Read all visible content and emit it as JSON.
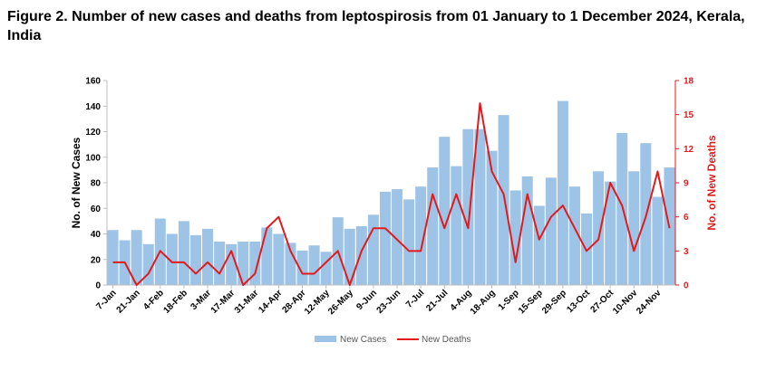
{
  "chart_data": {
    "type": "bar+line",
    "title": "Figure 2. Number of new cases and deaths from leptospirosis from 01 January to 1 December 2024, Kerala, India",
    "ylabel": "No. of New Cases",
    "y2label": "No. of New Deaths",
    "ylim": [
      0,
      160
    ],
    "yticks": [
      0,
      20,
      40,
      60,
      80,
      100,
      120,
      140,
      160
    ],
    "y2lim": [
      0,
      18
    ],
    "y2ticks": [
      0,
      3,
      6,
      9,
      12,
      15,
      18
    ],
    "categories": [
      "7-Jan",
      "14-Jan",
      "21-Jan",
      "28-Jan",
      "4-Feb",
      "11-Feb",
      "18-Feb",
      "25-Feb",
      "3-Mar",
      "10-Mar",
      "17-Mar",
      "24-Mar",
      "31-Mar",
      "7-Apr",
      "14-Apr",
      "21-Apr",
      "28-Apr",
      "5-May",
      "12-May",
      "19-May",
      "26-May",
      "2-Jun",
      "9-Jun",
      "16-Jun",
      "23-Jun",
      "30-Jun",
      "7-Jul",
      "14-Jul",
      "21-Jul",
      "28-Jul",
      "4-Aug",
      "11-Aug",
      "18-Aug",
      "25-Aug",
      "1-Sep",
      "8-Sep",
      "15-Sep",
      "22-Sep",
      "29-Sep",
      "6-Oct",
      "13-Oct",
      "20-Oct",
      "27-Oct",
      "3-Nov",
      "10-Nov",
      "17-Nov",
      "24-Nov",
      "1-Dec"
    ],
    "tick_labels": [
      "7-Jan",
      "21-Jan",
      "4-Feb",
      "18-Feb",
      "3-Mar",
      "17-Mar",
      "31-Mar",
      "14-Apr",
      "28-Apr",
      "12-May",
      "26-May",
      "9-Jun",
      "23-Jun",
      "7-Jul",
      "21-Jul",
      "4-Aug",
      "18-Aug",
      "1-Sep",
      "15-Sep",
      "29-Sep",
      "13-Oct",
      "27-Oct",
      "10-Nov",
      "24-Nov"
    ],
    "series": [
      {
        "name": "New Cases",
        "kind": "bar",
        "axis": "left",
        "color": "#9dc3e6",
        "values": [
          43,
          35,
          43,
          32,
          52,
          40,
          50,
          39,
          44,
          34,
          32,
          34,
          34,
          45,
          40,
          33,
          27,
          31,
          26,
          53,
          44,
          46,
          55,
          73,
          75,
          67,
          77,
          92,
          116,
          93,
          122,
          122,
          105,
          133,
          74,
          85,
          62,
          84,
          144,
          77,
          56,
          89,
          81,
          119,
          89,
          111,
          69,
          92
        ]
      },
      {
        "name": "New Deaths",
        "kind": "line",
        "axis": "right",
        "color": "#e31a1c",
        "values": [
          2,
          2,
          0,
          1,
          3,
          2,
          2,
          1,
          2,
          1,
          3,
          0,
          1,
          5,
          6,
          3,
          1,
          1,
          2,
          3,
          0,
          3,
          5,
          5,
          4,
          3,
          3,
          8,
          5,
          8,
          5,
          16,
          10,
          8,
          2,
          8,
          4,
          6,
          7,
          5,
          3,
          4,
          9,
          7,
          3,
          6,
          10,
          5
        ]
      }
    ],
    "legend": {
      "position": "bottom",
      "entries": [
        "New Cases",
        "New Deaths"
      ]
    }
  }
}
